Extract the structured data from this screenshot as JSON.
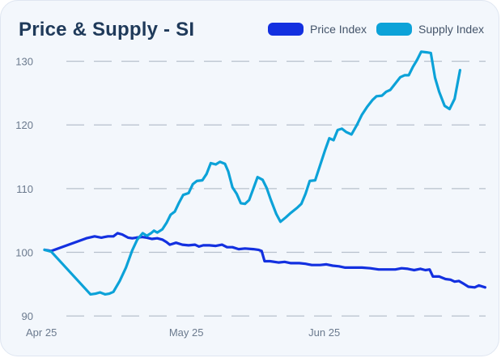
{
  "chart_data": {
    "type": "line",
    "title": "Price & Supply - SI",
    "xlabel": "",
    "ylabel": "",
    "ylim": [
      89,
      133
    ],
    "yticks": [
      90,
      100,
      110,
      120,
      130
    ],
    "xticks": [
      {
        "label": "Apr 25",
        "t": 0
      },
      {
        "label": "May 25",
        "t": 0.333
      },
      {
        "label": "Jun 25",
        "t": 0.667
      }
    ],
    "grid": "horizontal dashed",
    "legend": "top-right",
    "series": [
      {
        "name": "Price Index",
        "color": "#1330e0",
        "points": [
          [
            0.0,
            100.4
          ],
          [
            0.008,
            100.3
          ],
          [
            0.016,
            100.2
          ],
          [
            0.1,
            102.2
          ],
          [
            0.12,
            102.5
          ],
          [
            0.136,
            102.3
          ],
          [
            0.152,
            102.5
          ],
          [
            0.165,
            102.5
          ],
          [
            0.175,
            103.0
          ],
          [
            0.186,
            102.8
          ],
          [
            0.2,
            102.3
          ],
          [
            0.21,
            102.2
          ],
          [
            0.22,
            102.3
          ],
          [
            0.233,
            102.4
          ],
          [
            0.245,
            102.3
          ],
          [
            0.257,
            102.1
          ],
          [
            0.27,
            102.2
          ],
          [
            0.282,
            102.0
          ],
          [
            0.292,
            101.6
          ],
          [
            0.3,
            101.2
          ],
          [
            0.315,
            101.5
          ],
          [
            0.33,
            101.2
          ],
          [
            0.345,
            101.1
          ],
          [
            0.36,
            101.2
          ],
          [
            0.37,
            100.9
          ],
          [
            0.38,
            101.1
          ],
          [
            0.395,
            101.1
          ],
          [
            0.41,
            101.0
          ],
          [
            0.425,
            101.2
          ],
          [
            0.437,
            100.8
          ],
          [
            0.45,
            100.8
          ],
          [
            0.465,
            100.5
          ],
          [
            0.48,
            100.6
          ],
          [
            0.5,
            100.5
          ],
          [
            0.512,
            100.4
          ],
          [
            0.52,
            100.2
          ],
          [
            0.527,
            98.6
          ],
          [
            0.54,
            98.6
          ],
          [
            0.56,
            98.4
          ],
          [
            0.575,
            98.5
          ],
          [
            0.59,
            98.3
          ],
          [
            0.61,
            98.3
          ],
          [
            0.625,
            98.2
          ],
          [
            0.64,
            98.0
          ],
          [
            0.66,
            98.0
          ],
          [
            0.675,
            98.1
          ],
          [
            0.69,
            97.9
          ],
          [
            0.705,
            97.8
          ],
          [
            0.72,
            97.6
          ],
          [
            0.74,
            97.6
          ],
          [
            0.76,
            97.6
          ],
          [
            0.78,
            97.5
          ],
          [
            0.8,
            97.3
          ],
          [
            0.82,
            97.3
          ],
          [
            0.84,
            97.3
          ],
          [
            0.855,
            97.5
          ],
          [
            0.87,
            97.4
          ],
          [
            0.885,
            97.2
          ],
          [
            0.9,
            97.4
          ],
          [
            0.912,
            97.2
          ],
          [
            0.922,
            97.3
          ],
          [
            0.93,
            96.2
          ],
          [
            0.945,
            96.2
          ],
          [
            0.96,
            95.8
          ],
          [
            0.972,
            95.7
          ],
          [
            0.982,
            95.4
          ],
          [
            0.992,
            95.5
          ],
          [
            1.005,
            95.0
          ],
          [
            1.015,
            94.6
          ],
          [
            1.03,
            94.5
          ],
          [
            1.04,
            94.8
          ],
          [
            1.055,
            94.5
          ]
        ]
      },
      {
        "name": "Supply Index",
        "color": "#0ca2d8",
        "points": [
          [
            0.0,
            100.4
          ],
          [
            0.016,
            100.1
          ],
          [
            0.11,
            93.4
          ],
          [
            0.122,
            93.5
          ],
          [
            0.133,
            93.7
          ],
          [
            0.145,
            93.4
          ],
          [
            0.155,
            93.5
          ],
          [
            0.165,
            93.8
          ],
          [
            0.18,
            95.5
          ],
          [
            0.195,
            97.6
          ],
          [
            0.21,
            100.3
          ],
          [
            0.222,
            102.0
          ],
          [
            0.235,
            103.0
          ],
          [
            0.245,
            102.6
          ],
          [
            0.255,
            103.0
          ],
          [
            0.262,
            103.4
          ],
          [
            0.27,
            103.1
          ],
          [
            0.282,
            103.6
          ],
          [
            0.292,
            104.6
          ],
          [
            0.302,
            105.9
          ],
          [
            0.312,
            106.4
          ],
          [
            0.322,
            107.8
          ],
          [
            0.332,
            109.0
          ],
          [
            0.345,
            109.3
          ],
          [
            0.355,
            110.7
          ],
          [
            0.365,
            111.2
          ],
          [
            0.378,
            111.3
          ],
          [
            0.388,
            112.3
          ],
          [
            0.398,
            114.0
          ],
          [
            0.41,
            113.8
          ],
          [
            0.42,
            114.2
          ],
          [
            0.432,
            113.9
          ],
          [
            0.44,
            112.7
          ],
          [
            0.45,
            110.2
          ],
          [
            0.46,
            109.2
          ],
          [
            0.47,
            107.7
          ],
          [
            0.48,
            107.6
          ],
          [
            0.49,
            108.2
          ],
          [
            0.5,
            110.0
          ],
          [
            0.51,
            111.8
          ],
          [
            0.522,
            111.4
          ],
          [
            0.532,
            110.1
          ],
          [
            0.542,
            108.2
          ],
          [
            0.555,
            106.0
          ],
          [
            0.565,
            104.8
          ],
          [
            0.578,
            105.5
          ],
          [
            0.59,
            106.2
          ],
          [
            0.605,
            107.0
          ],
          [
            0.615,
            107.6
          ],
          [
            0.625,
            109.2
          ],
          [
            0.635,
            111.2
          ],
          [
            0.648,
            111.3
          ],
          [
            0.66,
            113.7
          ],
          [
            0.672,
            116.1
          ],
          [
            0.682,
            117.9
          ],
          [
            0.692,
            117.6
          ],
          [
            0.702,
            119.2
          ],
          [
            0.712,
            119.4
          ],
          [
            0.722,
            118.9
          ],
          [
            0.735,
            118.5
          ],
          [
            0.748,
            120.0
          ],
          [
            0.76,
            121.6
          ],
          [
            0.772,
            122.8
          ],
          [
            0.785,
            123.9
          ],
          [
            0.795,
            124.5
          ],
          [
            0.808,
            124.6
          ],
          [
            0.818,
            125.2
          ],
          [
            0.828,
            125.5
          ],
          [
            0.84,
            126.5
          ],
          [
            0.852,
            127.5
          ],
          [
            0.862,
            127.8
          ],
          [
            0.872,
            127.8
          ],
          [
            0.882,
            129.1
          ],
          [
            0.892,
            130.2
          ],
          [
            0.902,
            131.5
          ],
          [
            0.915,
            131.4
          ],
          [
            0.925,
            131.3
          ],
          [
            0.935,
            127.4
          ],
          [
            0.945,
            125.2
          ],
          [
            0.958,
            123.0
          ],
          [
            0.97,
            122.5
          ],
          [
            0.982,
            124.1
          ],
          [
            0.995,
            128.6
          ]
        ]
      }
    ]
  }
}
